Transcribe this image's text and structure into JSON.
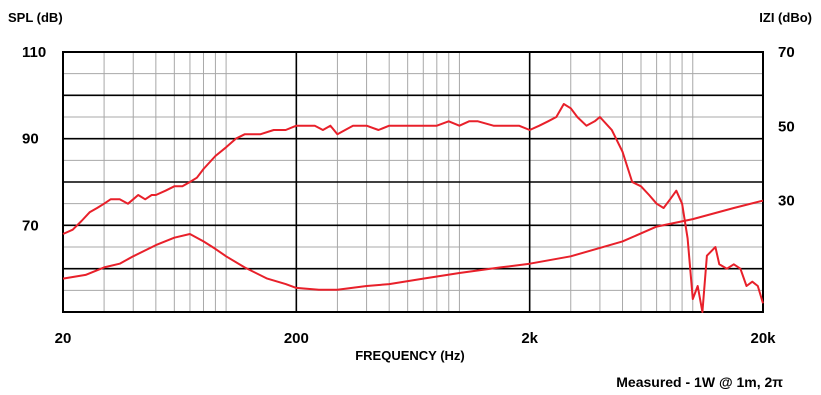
{
  "chart_data": {
    "type": "line",
    "title": "",
    "xlabel": "FREQUENCY (Hz)",
    "ylabel_left": "SPL (dB)",
    "ylabel_right": "IZI (dBo)",
    "x_scale": "log",
    "xlim": [
      20,
      20000
    ],
    "ylim_left": [
      50,
      110
    ],
    "ylim_right": [
      0,
      70
    ],
    "x_ticks": [
      {
        "value": 20,
        "label": "20"
      },
      {
        "value": 200,
        "label": "200"
      },
      {
        "value": 2000,
        "label": "2k"
      },
      {
        "value": 20000,
        "label": "20k"
      }
    ],
    "y_ticks_left": [
      {
        "value": 110,
        "label": "110"
      },
      {
        "value": 90,
        "label": "90"
      },
      {
        "value": 70,
        "label": "70"
      }
    ],
    "y_ticks_right": [
      {
        "value": 70,
        "label": "70"
      },
      {
        "value": 50,
        "label": "50"
      },
      {
        "value": 30,
        "label": "30"
      }
    ],
    "grid": true,
    "color": "#e8202a",
    "series": [
      {
        "axis": "left",
        "x": [
          20,
          22,
          24,
          26,
          28,
          30,
          32,
          35,
          38,
          40,
          42,
          45,
          48,
          50,
          55,
          60,
          65,
          70,
          75,
          80,
          90,
          100,
          110,
          120,
          140,
          160,
          180,
          200,
          220,
          240,
          260,
          280,
          300,
          350,
          400,
          450,
          500,
          600,
          700,
          800,
          900,
          1000,
          1100,
          1200,
          1400,
          1600,
          1800,
          2000,
          2200,
          2400,
          2600,
          2800,
          3000,
          3200,
          3500,
          3800,
          4000,
          4500,
          5000,
          5500,
          6000,
          6500,
          7000,
          7500,
          8000,
          8500,
          9000,
          9500,
          10000,
          10500,
          11000,
          11500,
          12000,
          12500,
          13000,
          14000,
          15000,
          16000,
          17000,
          18000,
          19000,
          20000
        ],
        "y": [
          68,
          69,
          71,
          73,
          74,
          75,
          76,
          76,
          75,
          76,
          77,
          76,
          77,
          77,
          78,
          79,
          79,
          80,
          81,
          83,
          86,
          88,
          90,
          91,
          91,
          92,
          92,
          93,
          93,
          93,
          92,
          93,
          91,
          93,
          93,
          92,
          93,
          93,
          93,
          93,
          94,
          93,
          94,
          94,
          93,
          93,
          93,
          92,
          93,
          94,
          95,
          98,
          97,
          95,
          93,
          94,
          95,
          92,
          87,
          80,
          79,
          77,
          75,
          74,
          76,
          78,
          75,
          67,
          53,
          56,
          50,
          63,
          64,
          65,
          61,
          60,
          61,
          60,
          56,
          57,
          56,
          52
        ]
      },
      {
        "axis": "right",
        "x": [
          20,
          25,
          30,
          35,
          40,
          50,
          60,
          70,
          80,
          90,
          100,
          120,
          150,
          180,
          200,
          250,
          300,
          400,
          500,
          700,
          1000,
          1500,
          2000,
          3000,
          5000,
          7000,
          10000,
          15000,
          20000
        ],
        "y": [
          9,
          10,
          12,
          13,
          15,
          18,
          20,
          21,
          19,
          17,
          15,
          12,
          9,
          7.5,
          6.5,
          6,
          6,
          7,
          7.5,
          9,
          10.5,
          12,
          13,
          15,
          19,
          23,
          25,
          28,
          30
        ]
      }
    ]
  },
  "footer": {
    "measured_note": "Measured - 1W @ 1m, 2π"
  }
}
